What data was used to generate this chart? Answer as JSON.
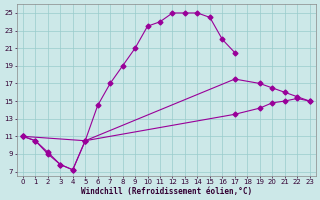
{
  "xlabel": "Windchill (Refroidissement éolien,°C)",
  "bg_color": "#cce8e8",
  "grid_color": "#99cccc",
  "line_color": "#990099",
  "xlim": [
    -0.5,
    23.5
  ],
  "ylim": [
    6.5,
    26.0
  ],
  "ytick_vals": [
    7,
    9,
    11,
    13,
    15,
    17,
    19,
    21,
    23,
    25
  ],
  "xtick_vals": [
    0,
    1,
    2,
    3,
    4,
    5,
    6,
    7,
    8,
    9,
    10,
    11,
    12,
    13,
    14,
    15,
    16,
    17,
    18,
    19,
    20,
    21,
    22,
    23
  ],
  "curve1_x": [
    0,
    1,
    2,
    3,
    4,
    5,
    6,
    7,
    8,
    9,
    10,
    11,
    12,
    13,
    14,
    15,
    16,
    17
  ],
  "curve1_y": [
    11,
    10.5,
    9.0,
    7.8,
    7.2,
    10.5,
    14.5,
    17.0,
    19.0,
    21.0,
    23.5,
    24.0,
    25.0,
    25.0,
    25.0,
    24.5,
    22.0,
    20.5
  ],
  "curve2_x": [
    0,
    1,
    2,
    3,
    4,
    5,
    17,
    19,
    20,
    21,
    22,
    23
  ],
  "curve2_y": [
    11,
    10.5,
    9.2,
    7.8,
    7.2,
    10.5,
    17.5,
    17.0,
    16.5,
    16.0,
    15.5,
    15.0
  ],
  "curve3_x": [
    0,
    5,
    17,
    19,
    20,
    21,
    22,
    23
  ],
  "curve3_y": [
    11,
    10.5,
    13.5,
    14.2,
    14.8,
    15.0,
    15.3,
    15.0
  ]
}
